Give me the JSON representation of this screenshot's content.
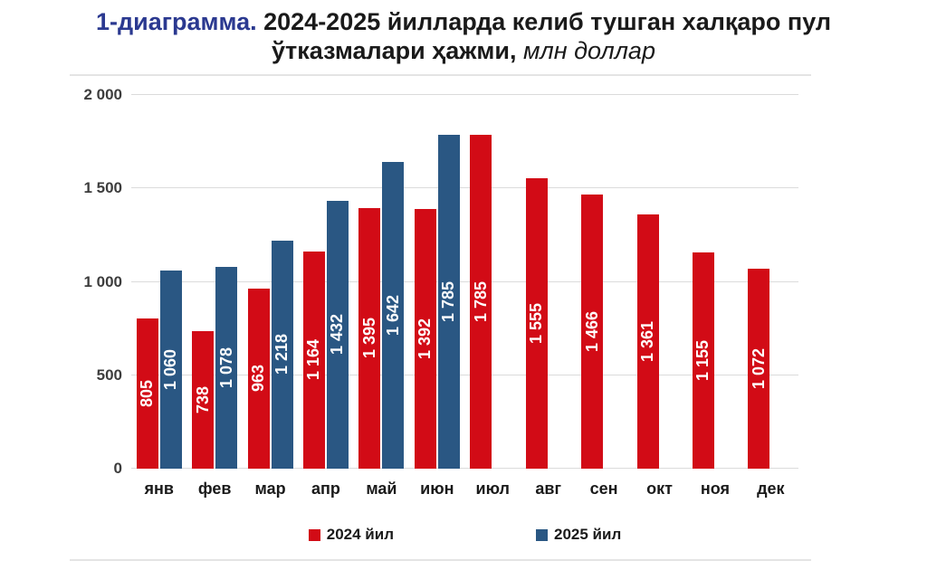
{
  "title": {
    "prefix": "1-диаграмма.",
    "line1": "2024-2025 йилларда келиб тушган халқаро пул",
    "line2": "ўтказмалари ҳажми,",
    "unit": "млн доллар"
  },
  "colors": {
    "red": "#d20b16",
    "blue": "#2a5783",
    "title_prefix": "#2b3990",
    "grid": "#dbdbdb",
    "value_label": "#ffffff"
  },
  "chart_data": {
    "type": "bar",
    "title": "1-диаграмма. 2024-2025 йилларда келиб тушган халқаро пул ўтказмалари ҳажми, млн доллар",
    "categories": [
      "янв",
      "фев",
      "мар",
      "апр",
      "май",
      "июн",
      "июл",
      "авг",
      "сен",
      "окт",
      "ноя",
      "дек"
    ],
    "series": [
      {
        "name": "2024 йил",
        "color_key": "red",
        "values": [
          805,
          738,
          963,
          1164,
          1395,
          1392,
          1785,
          1555,
          1466,
          1361,
          1155,
          1072
        ]
      },
      {
        "name": "2025 йил",
        "color_key": "blue",
        "values": [
          1060,
          1078,
          1218,
          1432,
          1642,
          1785,
          null,
          null,
          null,
          null,
          null,
          null
        ]
      }
    ],
    "ylim": [
      0,
      2000
    ],
    "yticks": [
      0,
      500,
      1000,
      1500,
      2000
    ],
    "ytick_labels": [
      "0",
      "500",
      "1 000",
      "1 500",
      "2 000"
    ],
    "grid": true,
    "legend_position": "bottom",
    "value_labels": "rotated-90-inside-bars-white"
  },
  "legend": {
    "items": [
      {
        "label": "2024 йил",
        "color_key": "red"
      },
      {
        "label": "2025 йил",
        "color_key": "blue"
      }
    ]
  }
}
